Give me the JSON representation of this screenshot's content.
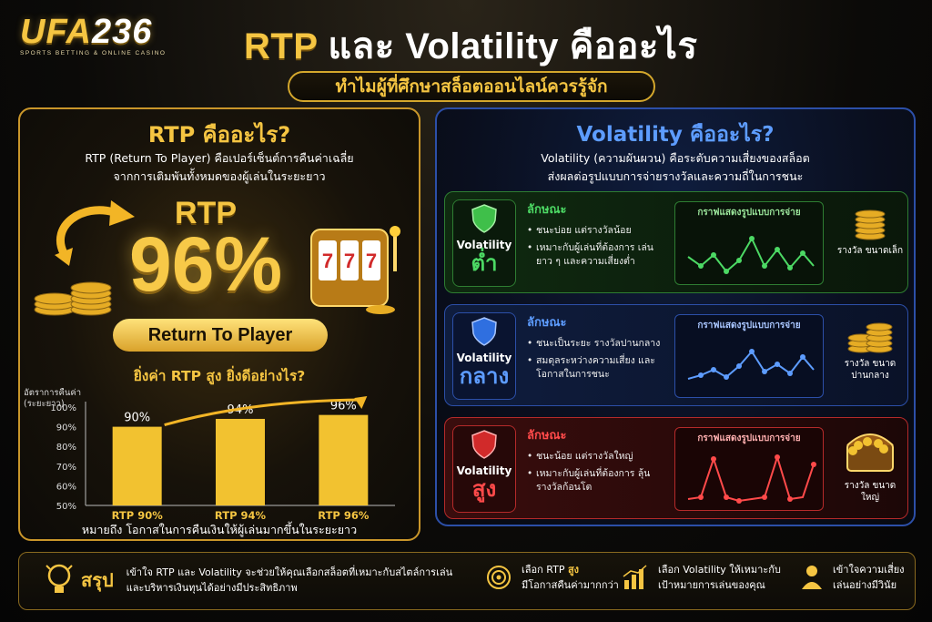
{
  "brand": {
    "logo_main": "UFA",
    "logo_num": "236",
    "logo_sub": "SPORTS BETTING & ONLINE CASINO"
  },
  "header": {
    "title_a": "RTP",
    "title_b": " และ Volatility คืออะไร",
    "subtitle": "ทำไมผู้ที่ศึกษาสล็อตออนไลน์ควรรู้จัก"
  },
  "rtp": {
    "title": "RTP คืออะไร?",
    "desc_line1": "RTP (Return To Player) คือเปอร์เซ็นต์การคืนค่าเฉลี่ย",
    "desc_line2": "จากการเติมพันทั้งหมดของผู้เล่นในระยะยาว",
    "label": "RTP",
    "value": "96%",
    "pill": "Return To Player",
    "question": "ยิ่งค่า RTP สูง ยิ่งดีอย่างไร?",
    "note": "หมายถึง โอกาสในการคืนเงินให้ผู้เล่นมากขึ้นในระยะยาว"
  },
  "chart_data": {
    "type": "bar",
    "ylabel": "อัตราการคืนค่า (ระยะยาว)",
    "yticks": [
      "100%",
      "90%",
      "80%",
      "70%",
      "60%",
      "50%"
    ],
    "ylim": [
      50,
      100
    ],
    "categories": [
      "RTP 90%",
      "RTP 94%",
      "RTP 96%"
    ],
    "values": [
      90,
      94,
      96
    ],
    "value_labels": [
      "90%",
      "94%",
      "96%"
    ],
    "bar_color": "#f2c230"
  },
  "volatility": {
    "title": "Volatility คืออะไร?",
    "desc_line1": "Volatility (ความผันผวน) คือระดับความเสี่ยงของสล็อต",
    "desc_line2": "ส่งผลต่อรูปแบบการจ่ายรางวัลและความถี่ในการชนะ",
    "rows": [
      {
        "label": "Volatility",
        "level": "ต่ำ",
        "feature_title": "ลักษณะ",
        "bullets": [
          "ชนะบ่อย แต่รางวัลน้อย",
          "เหมาะกับผู้เล่นที่ต้องการ เล่นยาว ๆ และความเสี่ยงต่ำ"
        ],
        "graph_title": "กราฟแสดงรูปแบบการจ่าย",
        "reward": "รางวัล ขนาดเล็ก",
        "color": "#4cd964"
      },
      {
        "label": "Volatility",
        "level": "กลาง",
        "feature_title": "ลักษณะ",
        "bullets": [
          "ชนะเป็นระยะ รางวัลปานกลาง",
          "สมดุลระหว่างความเสี่ยง และโอกาสในการชนะ"
        ],
        "graph_title": "กราฟแสดงรูปแบบการจ่าย",
        "reward": "รางวัล ขนาดปานกลาง",
        "color": "#5d9cff"
      },
      {
        "label": "Volatility",
        "level": "สูง",
        "feature_title": "ลักษณะ",
        "bullets": [
          "ชนะน้อย แต่รางวัลใหญ่",
          "เหมาะกับผู้เล่นที่ต้องการ ลุ้นรางวัลก้อนโต"
        ],
        "graph_title": "กราฟแสดงรูปแบบการจ่าย",
        "reward": "รางวัล ขนาดใหญ่",
        "color": "#ff4a4a"
      }
    ]
  },
  "summary": {
    "title": "สรุป",
    "main_line1": "เข้าใจ RTP และ Volatility จะช่วยให้คุณเลือกสล็อตที่เหมาะกับสไตล์การเล่น",
    "main_line2": "และบริหารเงินทุนได้อย่างมีประสิทธิภาพ",
    "tip1_a": "เลือก RTP ",
    "tip1_b": "สูง",
    "tip1_c": "มีโอกาสคืนค่ามากกว่า",
    "tip2_a": "เลือก Volatility ให้เหมาะกับ",
    "tip2_b": "เป้าหมายการเล่นของคุณ",
    "tip3_a": "เข้าใจความเสี่ยง",
    "tip3_b": "เล่นอย่างมีวินัย"
  }
}
